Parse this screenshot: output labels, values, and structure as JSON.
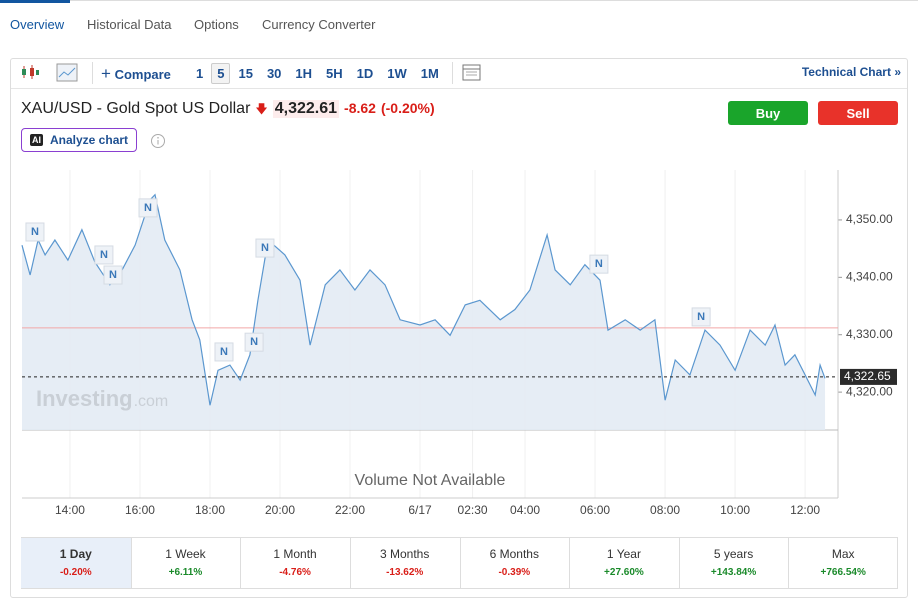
{
  "tabs": [
    "Overview",
    "Historical Data",
    "Options",
    "Currency Converter"
  ],
  "toolbar": {
    "compare": "Compare",
    "intervals": [
      "1",
      "5",
      "15",
      "30",
      "1H",
      "5H",
      "1D",
      "1W",
      "1M"
    ],
    "selected_interval": "5",
    "technical_chart": "Technical Chart"
  },
  "header": {
    "title": "XAU/USD - Gold Spot US Dollar",
    "price": "4,322.61",
    "change": "-8.62",
    "change_pct": "(-0.20%)",
    "buy": "Buy",
    "sell": "Sell",
    "ai_badge": "AI",
    "analyze": "Analyze chart"
  },
  "chart_data": {
    "type": "line",
    "color": "#5b97cf",
    "x": [
      -1.37,
      -1.14,
      -0.91,
      -0.71,
      -0.43,
      -0.06,
      0.34,
      0.71,
      1.14,
      1.49,
      1.86,
      2.29,
      2.43,
      2.71,
      3.14,
      3.49,
      3.71,
      4.0,
      4.23,
      4.57,
      4.86,
      5.14,
      5.37,
      5.66,
      6.14,
      6.57,
      6.86,
      7.29,
      7.71,
      8.14,
      8.57,
      9.0,
      9.43,
      10.0,
      10.43,
      10.86,
      11.29,
      11.71,
      12.29,
      12.71,
      13.14,
      13.63,
      13.86,
      14.29,
      14.71,
      15.14,
      15.37,
      15.86,
      16.29,
      16.71,
      17.0,
      17.29,
      17.71,
      18.14,
      18.57,
      19.0,
      19.43,
      19.86,
      20.14,
      20.43,
      20.71,
      21.0,
      21.29,
      21.43,
      21.57
    ],
    "values": [
      4345.6,
      4340.4,
      4346.5,
      4343.9,
      4346.5,
      4343.0,
      4348.3,
      4342.7,
      4338.7,
      4341.3,
      4345.6,
      4353.5,
      4354.4,
      4346.5,
      4341.3,
      4332.6,
      4329.1,
      4317.7,
      4323.8,
      4324.7,
      4322.1,
      4326.5,
      4336.0,
      4346.5,
      4343.9,
      4339.5,
      4328.2,
      4338.7,
      4341.3,
      4337.8,
      4341.3,
      4338.7,
      4332.6,
      4331.7,
      4332.6,
      4329.9,
      4335.2,
      4336.0,
      4332.6,
      4334.4,
      4337.8,
      4347.4,
      4341.3,
      4338.7,
      4342.2,
      4339.5,
      4330.8,
      4332.6,
      4330.8,
      4332.6,
      4318.6,
      4325.6,
      4323.0,
      4330.8,
      4328.2,
      4323.8,
      4330.8,
      4328.2,
      4331.7,
      4324.7,
      4326.5,
      4323.0,
      4319.5,
      4324.7,
      4322.4
    ],
    "xlim": [
      -1.37,
      21.94
    ],
    "xticks": [
      {
        "value": 0,
        "label": "14:00"
      },
      {
        "value": 2,
        "label": "16:00"
      },
      {
        "value": 4,
        "label": "18:00"
      },
      {
        "value": 6,
        "label": "20:00"
      },
      {
        "value": 8,
        "label": "22:00"
      },
      {
        "value": 10,
        "label": "6/17"
      },
      {
        "value": 11.5,
        "label": "02:30"
      },
      {
        "value": 13,
        "label": "04:00"
      },
      {
        "value": 15,
        "label": "06:00"
      },
      {
        "value": 17,
        "label": "08:00"
      },
      {
        "value": 19,
        "label": "10:00"
      },
      {
        "value": 21,
        "label": "12:00"
      }
    ],
    "ylim": [
      4313.4,
      4358.7
    ],
    "yticks": [
      {
        "value": 4320,
        "label": "4,320.00"
      },
      {
        "value": 4330,
        "label": "4,330.00"
      },
      {
        "value": 4340,
        "label": "4,340.00"
      },
      {
        "value": 4350,
        "label": "4,350.00"
      }
    ],
    "grid": true,
    "reference_line": 4331.2,
    "last_price": {
      "value": 4322.65,
      "label": "4,322.65"
    },
    "news_markers": [
      {
        "x": -1.0,
        "y": 4347.9,
        "label": "N"
      },
      {
        "x": 0.97,
        "y": 4343.9,
        "label": "N"
      },
      {
        "x": 1.23,
        "y": 4340.4,
        "label": "N"
      },
      {
        "x": 2.23,
        "y": 4352.1,
        "label": "N"
      },
      {
        "x": 4.4,
        "y": 4327.0,
        "label": "N"
      },
      {
        "x": 5.26,
        "y": 4328.7,
        "label": "N"
      },
      {
        "x": 5.57,
        "y": 4345.1,
        "label": "N"
      },
      {
        "x": 15.11,
        "y": 4342.3,
        "label": "N"
      },
      {
        "x": 18.03,
        "y": 4333.1,
        "label": "N"
      }
    ],
    "watermark": "Investing",
    "watermark_suffix": ".com",
    "volume_note": "Volume Not Available"
  },
  "periods": [
    {
      "name": "1 Day",
      "change": "-0.20%"
    },
    {
      "name": "1 Week",
      "change": "+6.11%"
    },
    {
      "name": "1 Month",
      "change": "-4.76%"
    },
    {
      "name": "3 Months",
      "change": "-13.62%"
    },
    {
      "name": "6 Months",
      "change": "-0.39%"
    },
    {
      "name": "1 Year",
      "change": "+27.60%"
    },
    {
      "name": "5 years",
      "change": "+143.84%"
    },
    {
      "name": "Max",
      "change": "+766.54%"
    }
  ]
}
